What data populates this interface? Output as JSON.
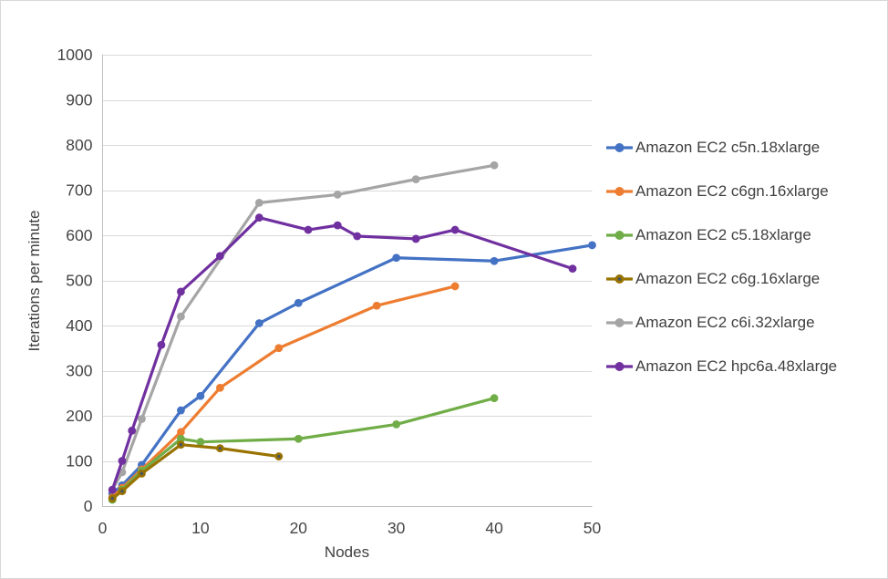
{
  "chart_data": {
    "type": "line",
    "title": "",
    "xlabel": "Nodes",
    "ylabel": "Iterations per minute",
    "xlim": [
      0,
      50
    ],
    "ylim": [
      0,
      1000
    ],
    "x_ticks": [
      0,
      10,
      20,
      30,
      40,
      50
    ],
    "y_ticks": [
      0,
      100,
      200,
      300,
      400,
      500,
      600,
      700,
      800,
      900,
      1000
    ],
    "grid": "horizontal",
    "legend_position": "right",
    "series": [
      {
        "name": "Amazon EC2 c5n.18xlarge",
        "color": "#4472C4",
        "points": [
          [
            1,
            28
          ],
          [
            2,
            46
          ],
          [
            4,
            91
          ],
          [
            8,
            212
          ],
          [
            10,
            244
          ],
          [
            16,
            405
          ],
          [
            20,
            450
          ],
          [
            30,
            550
          ],
          [
            40,
            543
          ],
          [
            50,
            578
          ]
        ]
      },
      {
        "name": "Amazon EC2 c6gn.16xlarge",
        "color": "#ED7D31",
        "points": [
          [
            1,
            19
          ],
          [
            2,
            40
          ],
          [
            4,
            81
          ],
          [
            8,
            164
          ],
          [
            12,
            262
          ],
          [
            18,
            350
          ],
          [
            28,
            444
          ],
          [
            36,
            487
          ]
        ]
      },
      {
        "name": "Amazon EC2 c5.18xlarge",
        "color": "#70AD47",
        "points": [
          [
            1,
            14
          ],
          [
            2,
            36
          ],
          [
            4,
            78
          ],
          [
            8,
            149
          ],
          [
            10,
            142
          ],
          [
            20,
            149
          ],
          [
            30,
            181
          ],
          [
            40,
            239
          ]
        ]
      },
      {
        "name": "Amazon EC2 c6g.16xlarge",
        "color": "#997300",
        "marker_center_dot": "#44546A",
        "points": [
          [
            1,
            17
          ],
          [
            2,
            33
          ],
          [
            4,
            72
          ],
          [
            8,
            136
          ],
          [
            12,
            128
          ],
          [
            18,
            110
          ]
        ]
      },
      {
        "name": "Amazon EC2 c6i.32xlarge",
        "color": "#A5A5A5",
        "points": [
          [
            1,
            36
          ],
          [
            2,
            75
          ],
          [
            4,
            193
          ],
          [
            8,
            420
          ],
          [
            16,
            672
          ],
          [
            24,
            690
          ],
          [
            32,
            724
          ],
          [
            40,
            755
          ]
        ]
      },
      {
        "name": "Amazon EC2 hpc6a.48xlarge",
        "color": "#7030A0",
        "points": [
          [
            1,
            36
          ],
          [
            2,
            100
          ],
          [
            3,
            167
          ],
          [
            6,
            357
          ],
          [
            8,
            475
          ],
          [
            12,
            554
          ],
          [
            16,
            639
          ],
          [
            21,
            612
          ],
          [
            24,
            622
          ],
          [
            26,
            598
          ],
          [
            32,
            592
          ],
          [
            36,
            612
          ],
          [
            48,
            526
          ]
        ]
      }
    ]
  },
  "style": {
    "gridline_color": "#D9D9D9",
    "axis_color": "#BFBFBF",
    "tick_label_color": "#454545",
    "line_width": 3.2,
    "marker_radius": 4.4
  }
}
